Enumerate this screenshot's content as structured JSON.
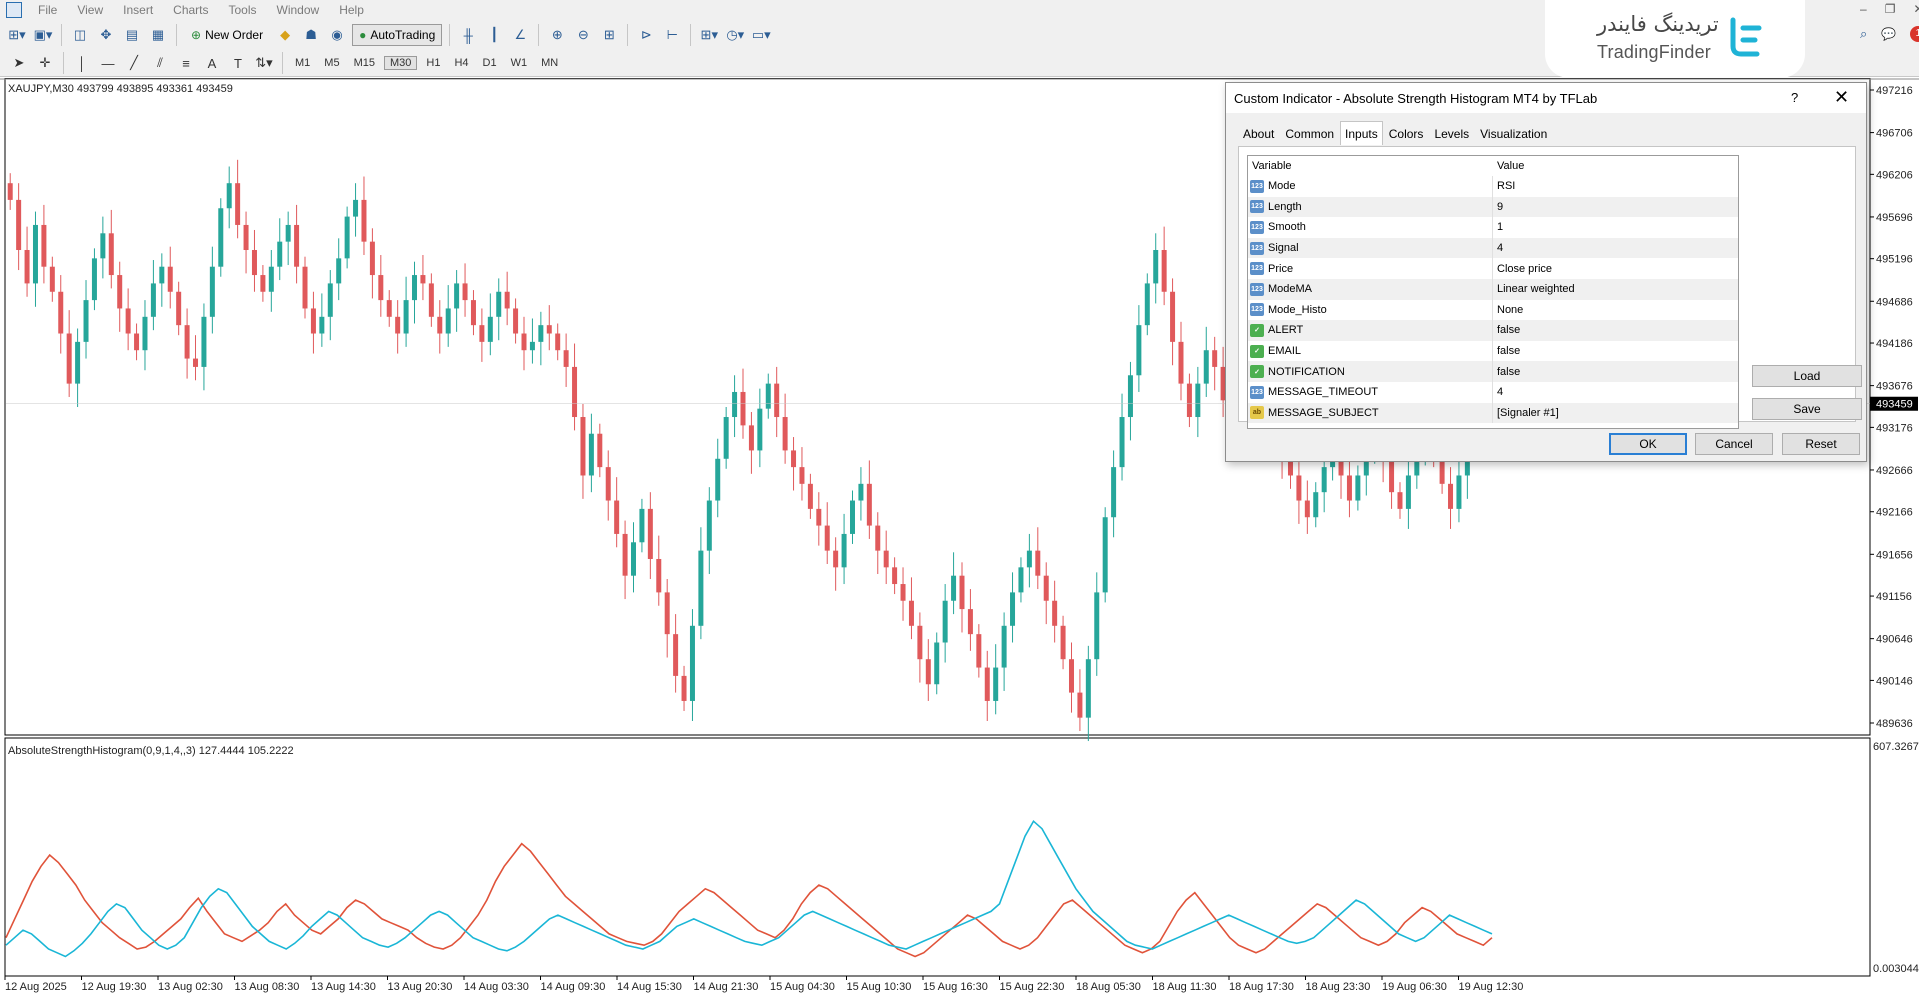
{
  "menu": [
    "File",
    "View",
    "Insert",
    "Charts",
    "Tools",
    "Window",
    "Help"
  ],
  "toolbar": {
    "new_order": "New Order",
    "autotrading": "AutoTrading"
  },
  "timeframes": [
    "M1",
    "M5",
    "M15",
    "M30",
    "H1",
    "H4",
    "D1",
    "W1",
    "MN"
  ],
  "active_timeframe": "M30",
  "logo": {
    "persian": "تریدینگ فایندر",
    "english": "TradingFinder"
  },
  "notification_count": "1",
  "chart": {
    "header": "XAUJPY,M30  493799 493895 493361 493459",
    "indicator_header": "AbsoluteStrengthHistogram(0,9,1,4,,3) 127.4444 105.2222",
    "current_price": "493459",
    "price_ticks": [
      "497216",
      "496706",
      "496206",
      "495696",
      "495196",
      "494686",
      "494186",
      "493676",
      "493176",
      "492666",
      "492166",
      "491656",
      "491156",
      "490646",
      "490146",
      "489636"
    ],
    "indicator_ticks": [
      "607.3267",
      "0.003044"
    ],
    "time_ticks": [
      "12 Aug 2025",
      "12 Aug 19:30",
      "13 Aug 02:30",
      "13 Aug 08:30",
      "13 Aug 14:30",
      "13 Aug 20:30",
      "14 Aug 03:30",
      "14 Aug 09:30",
      "14 Aug 15:30",
      "14 Aug 21:30",
      "15 Aug 04:30",
      "15 Aug 10:30",
      "15 Aug 16:30",
      "15 Aug 22:30",
      "18 Aug 05:30",
      "18 Aug 11:30",
      "18 Aug 17:30",
      "18 Aug 23:30",
      "19 Aug 06:30",
      "19 Aug 12:30"
    ],
    "colors": {
      "bull": "#26a69a",
      "bear": "#e0595b",
      "line_red": "#e0533a",
      "line_cyan": "#1ab6d6"
    }
  },
  "chart_data": {
    "type": "candlestick",
    "symbol": "XAUJPY",
    "timeframe": "M30",
    "ylim": [
      489636,
      497216
    ],
    "closes": [
      495900,
      495300,
      494900,
      495600,
      495100,
      494800,
      494300,
      493700,
      494200,
      494700,
      495200,
      495500,
      495000,
      494600,
      494300,
      494100,
      494500,
      494900,
      495100,
      494800,
      494400,
      494000,
      493900,
      494500,
      495100,
      495800,
      496100,
      495600,
      495300,
      495000,
      494800,
      495100,
      495400,
      495600,
      495100,
      494600,
      494300,
      494500,
      494900,
      495200,
      495700,
      495900,
      495400,
      495000,
      494700,
      494500,
      494300,
      494700,
      495000,
      494900,
      494500,
      494300,
      494600,
      494900,
      494700,
      494400,
      494200,
      494500,
      494800,
      494600,
      494300,
      494100,
      494200,
      494400,
      494300,
      494100,
      493900,
      493300,
      492600,
      493100,
      492700,
      492300,
      491900,
      491400,
      491800,
      492200,
      491600,
      491200,
      490700,
      490200,
      489900,
      490800,
      491700,
      492300,
      492800,
      493300,
      493600,
      493200,
      492900,
      493400,
      493700,
      493300,
      492900,
      492700,
      492500,
      492200,
      492000,
      491700,
      491500,
      491900,
      492300,
      492500,
      492000,
      491700,
      491500,
      491300,
      491100,
      490800,
      490400,
      490100,
      490600,
      491100,
      491400,
      491000,
      490700,
      490300,
      489900,
      490300,
      490800,
      491200,
      491500,
      491700,
      491400,
      491100,
      490800,
      490400,
      490000,
      489700,
      490400,
      491200,
      492100,
      492700,
      493300,
      493800,
      494400,
      494900,
      495300,
      494800,
      494200,
      493700,
      493300,
      493700,
      494100,
      493900,
      493500,
      493100,
      493600,
      494000,
      493700,
      493300,
      493000,
      492800,
      492600,
      492300,
      492100,
      492400,
      492700,
      492900,
      492600,
      492300,
      492600,
      492900,
      493200,
      492800,
      492400,
      492200,
      492600,
      493000,
      493200,
      492900,
      492500,
      492200,
      492600,
      493000,
      493459
    ],
    "osc_red": [
      110,
      160,
      210,
      260,
      300,
      330,
      310,
      280,
      250,
      210,
      180,
      150,
      130,
      110,
      95,
      80,
      85,
      100,
      120,
      140,
      160,
      190,
      215,
      180,
      150,
      120,
      110,
      100,
      115,
      130,
      150,
      180,
      200,
      170,
      150,
      130,
      120,
      140,
      160,
      190,
      210,
      200,
      180,
      160,
      150,
      140,
      130,
      110,
      95,
      85,
      80,
      90,
      110,
      140,
      170,
      210,
      260,
      300,
      330,
      360,
      340,
      310,
      280,
      250,
      220,
      200,
      180,
      160,
      140,
      120,
      110,
      100,
      95,
      90,
      100,
      120,
      150,
      180,
      200,
      220,
      240,
      230,
      210,
      190,
      170,
      150,
      130,
      120,
      110,
      130,
      160,
      200,
      230,
      250,
      240,
      220,
      200,
      180,
      160,
      140,
      120,
      100,
      80,
      70,
      60,
      70,
      90,
      110,
      130,
      150,
      170,
      160,
      140,
      120,
      100,
      90,
      80,
      90,
      110,
      140,
      170,
      200,
      210,
      190,
      170,
      150,
      130,
      110,
      90,
      80,
      70,
      80,
      100,
      140,
      180,
      210,
      230,
      200,
      170,
      140,
      110,
      90,
      80,
      70,
      80,
      100,
      120,
      140,
      160,
      180,
      200,
      190,
      170,
      150,
      130,
      110,
      100,
      90,
      100,
      120,
      150,
      170,
      190,
      180,
      160,
      140,
      120,
      110,
      100,
      90,
      110
    ],
    "osc_cyan": [
      90,
      110,
      130,
      120,
      100,
      80,
      70,
      60,
      75,
      95,
      120,
      150,
      180,
      200,
      190,
      160,
      130,
      110,
      90,
      80,
      90,
      110,
      150,
      190,
      220,
      240,
      230,
      200,
      170,
      140,
      120,
      100,
      90,
      80,
      95,
      115,
      140,
      160,
      180,
      170,
      150,
      130,
      110,
      100,
      90,
      85,
      95,
      110,
      130,
      150,
      170,
      180,
      170,
      150,
      130,
      110,
      100,
      90,
      80,
      75,
      85,
      100,
      120,
      140,
      160,
      170,
      160,
      150,
      140,
      130,
      120,
      110,
      100,
      90,
      85,
      80,
      90,
      100,
      120,
      140,
      150,
      160,
      150,
      140,
      130,
      120,
      110,
      100,
      95,
      90,
      100,
      110,
      130,
      150,
      170,
      180,
      170,
      160,
      150,
      140,
      130,
      120,
      110,
      100,
      90,
      85,
      80,
      90,
      100,
      110,
      120,
      130,
      140,
      150,
      160,
      170,
      180,
      200,
      260,
      320,
      380,
      420,
      400,
      360,
      320,
      280,
      240,
      210,
      180,
      160,
      140,
      120,
      100,
      90,
      85,
      80,
      90,
      100,
      110,
      120,
      130,
      140,
      150,
      160,
      170,
      160,
      150,
      140,
      130,
      120,
      110,
      100,
      95,
      100,
      110,
      130,
      150,
      170,
      190,
      210,
      200,
      180,
      160,
      140,
      120,
      110,
      100,
      110,
      130,
      150,
      170,
      160,
      150,
      140,
      130,
      120
    ]
  },
  "dialog": {
    "title": "Custom Indicator - Absolute Strength Histogram MT4 by TFLab",
    "help": "?",
    "close": "✕",
    "tabs": [
      "About",
      "Common",
      "Inputs",
      "Colors",
      "Levels",
      "Visualization"
    ],
    "active_tab": "Inputs",
    "columns": [
      "Variable",
      "Value"
    ],
    "inputs": [
      {
        "type": "num",
        "variable": "Mode",
        "value": "RSI"
      },
      {
        "type": "num",
        "variable": "Length",
        "value": "9"
      },
      {
        "type": "num",
        "variable": "Smooth",
        "value": "1"
      },
      {
        "type": "num",
        "variable": "Signal",
        "value": "4"
      },
      {
        "type": "num",
        "variable": "Price",
        "value": "Close price"
      },
      {
        "type": "num",
        "variable": "ModeMA",
        "value": "Linear weighted"
      },
      {
        "type": "num",
        "variable": "Mode_Histo",
        "value": "None"
      },
      {
        "type": "bool",
        "variable": "ALERT",
        "value": "false"
      },
      {
        "type": "bool",
        "variable": "EMAIL",
        "value": "false"
      },
      {
        "type": "bool",
        "variable": "NOTIFICATION",
        "value": "false"
      },
      {
        "type": "num",
        "variable": "MESSAGE_TIMEOUT",
        "value": "4"
      },
      {
        "type": "str",
        "variable": "MESSAGE_SUBJECT",
        "value": "[Signaler #1]"
      }
    ],
    "buttons": {
      "load": "Load",
      "save": "Save",
      "ok": "OK",
      "cancel": "Cancel",
      "reset": "Reset"
    }
  }
}
